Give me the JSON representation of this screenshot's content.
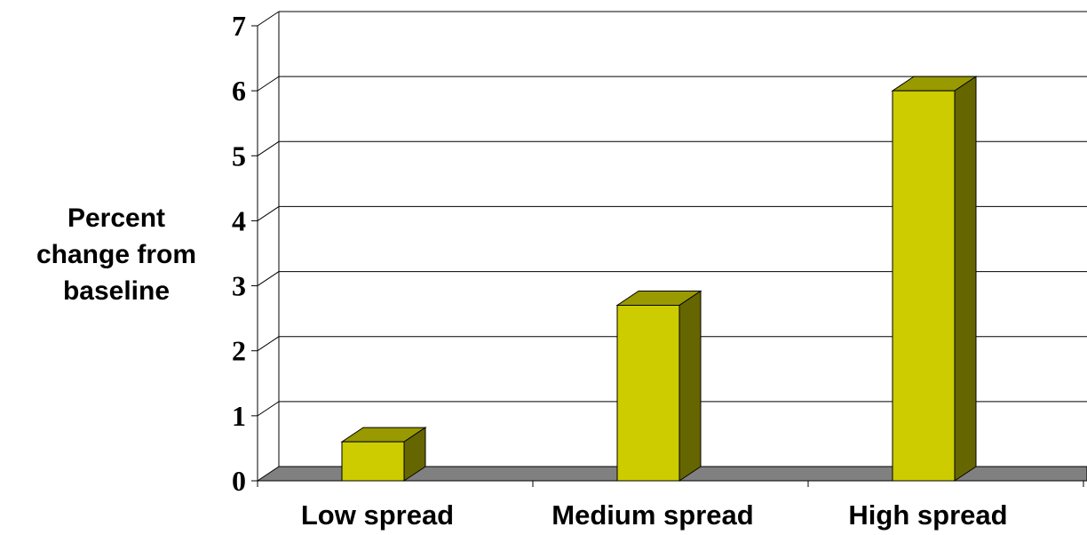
{
  "chart_data": {
    "type": "bar",
    "categories": [
      "Low spread",
      "Medium spread",
      "High spread"
    ],
    "values": [
      0.6,
      2.7,
      6.0
    ],
    "ylabel": "Percent\nchange from\nbaseline",
    "xlabel": "",
    "ylim": [
      0,
      7
    ],
    "yticks": [
      "0",
      "1",
      "2",
      "3",
      "4",
      "5",
      "6",
      "7"
    ],
    "grid": true,
    "legend": "none",
    "colors": {
      "bar_front": "#cccc00",
      "bar_top": "#999900",
      "bar_side": "#666600",
      "floor": "#808080"
    }
  }
}
